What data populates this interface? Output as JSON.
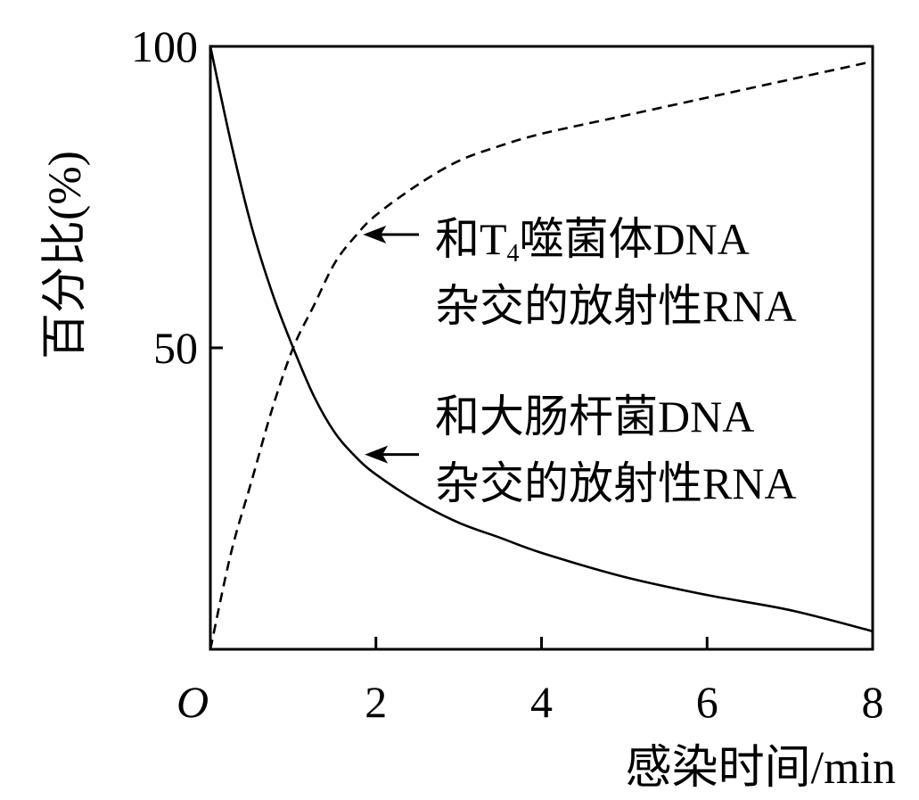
{
  "chart_data": {
    "type": "line",
    "title": "",
    "xlabel": "感染时间/min",
    "ylabel": "百分比(%)",
    "xlim": [
      0,
      8
    ],
    "ylim": [
      0,
      100
    ],
    "x_ticks": [
      {
        "value": 0,
        "label": "O"
      },
      {
        "value": 2,
        "label": "2"
      },
      {
        "value": 4,
        "label": "4"
      },
      {
        "value": 6,
        "label": "6"
      },
      {
        "value": 8,
        "label": "8"
      }
    ],
    "y_ticks": [
      {
        "value": 50,
        "label": "50"
      },
      {
        "value": 100,
        "label": "100"
      }
    ],
    "grid": false,
    "series": [
      {
        "style": "dashed",
        "x": [
          0,
          0.25,
          0.5,
          0.75,
          1.0,
          1.25,
          1.5,
          1.75,
          2.0,
          2.5,
          3.0,
          3.5,
          4.0,
          5.0,
          6.0,
          7.0,
          8.0
        ],
        "y": [
          0,
          16,
          28,
          40,
          50,
          57,
          64,
          68.5,
          72,
          77,
          81,
          83.5,
          85.5,
          88.5,
          91.5,
          94.5,
          97.5
        ]
      },
      {
        "style": "solid",
        "x": [
          0,
          0.25,
          0.5,
          0.75,
          1.0,
          1.25,
          1.5,
          1.75,
          2.0,
          2.5,
          3.0,
          3.5,
          4.0,
          5.0,
          6.0,
          7.0,
          8.0
        ],
        "y": [
          100,
          84,
          70,
          59,
          50,
          42,
          36,
          32,
          29,
          24.5,
          21,
          18.5,
          16,
          12,
          9,
          6.5,
          3
        ]
      }
    ],
    "annotations": [
      {
        "lines": [
          {
            "parts": [
              {
                "text": "和T"
              },
              {
                "text": "4",
                "sub": true
              },
              {
                "text": "噬菌体DNA"
              }
            ]
          },
          {
            "parts": [
              {
                "text": "杂交的放射性RNA"
              }
            ]
          }
        ],
        "arrow_to": {
          "x": 1.78,
          "y": 68.5
        }
      },
      {
        "lines": [
          {
            "parts": [
              {
                "text": "和大肠杆菌DNA"
              }
            ]
          },
          {
            "parts": [
              {
                "text": "杂交的放射性RNA"
              }
            ]
          }
        ],
        "arrow_to": {
          "x": 1.8,
          "y": 32
        }
      }
    ]
  }
}
